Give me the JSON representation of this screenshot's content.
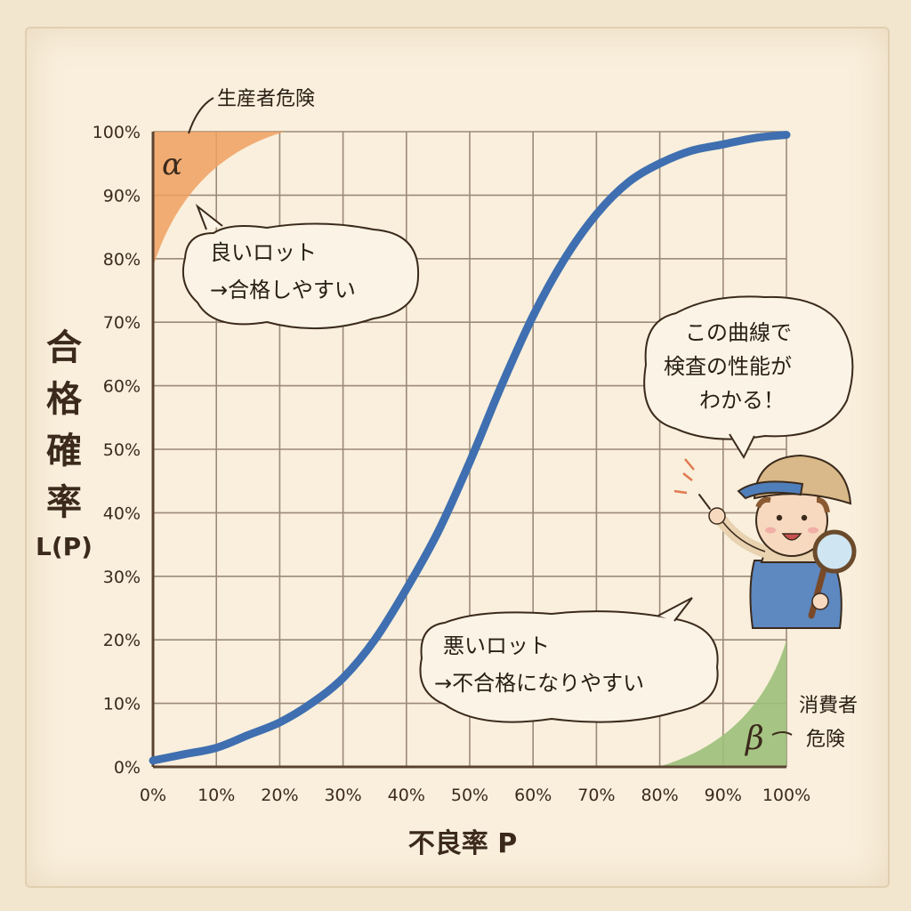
{
  "chart_data": {
    "type": "line",
    "title": "",
    "xlabel": "不良率 P",
    "ylabel_lines": [
      "合",
      "格",
      "確",
      "率",
      "L(P)"
    ],
    "x_ticks": [
      "0%",
      "10%",
      "20%",
      "30%",
      "40%",
      "50%",
      "60%",
      "70%",
      "80%",
      "90%",
      "100%"
    ],
    "y_ticks": [
      "0%",
      "10%",
      "20%",
      "30%",
      "40%",
      "50%",
      "60%",
      "70%",
      "80%",
      "90%",
      "100%"
    ],
    "xlim": [
      0,
      100
    ],
    "ylim": [
      0,
      100
    ],
    "grid": true,
    "series": [
      {
        "color": "#3f6fb0",
        "x": [
          0,
          5,
          10,
          15,
          20,
          25,
          30,
          35,
          40,
          45,
          50,
          55,
          60,
          65,
          70,
          75,
          80,
          85,
          90,
          95,
          100
        ],
        "y": [
          1,
          2,
          3,
          5,
          7,
          10,
          14,
          20,
          28,
          37,
          48,
          60,
          71,
          80,
          87,
          92,
          95,
          97,
          98,
          99,
          99.5
        ]
      }
    ],
    "regions": [
      {
        "symbol": "α",
        "label": "生産者危険",
        "color": "#f0a060"
      },
      {
        "symbol": "β",
        "label": "消費者\n危険",
        "color": "#9cc07a"
      }
    ],
    "annotations": [
      {
        "lines": [
          "良いロット",
          "→合格しやすい"
        ]
      },
      {
        "lines": [
          "悪いロット",
          "→不合格になりやすい"
        ]
      },
      {
        "lines": [
          "この曲線で",
          "検査の性能が",
          "わかる！"
        ]
      }
    ]
  },
  "colors": {
    "grid": "#9c8a78",
    "axis": "#5a4330",
    "curve": "#3f6fb0",
    "alpha_fill": "#f0a060",
    "beta_fill": "#9cc07a"
  },
  "icons": {
    "character": "detective-child-with-magnifier-icon"
  }
}
